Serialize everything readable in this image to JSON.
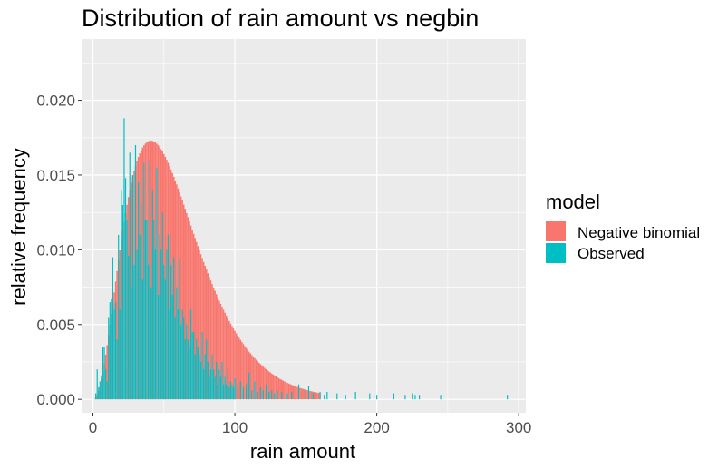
{
  "chart_data": {
    "type": "bar",
    "title": "Distribution of rain amount vs negbin",
    "xlabel": "rain amount",
    "ylabel": "relative frequency",
    "xlim": [
      -8,
      305
    ],
    "ylim": [
      -0.0009,
      0.0241
    ],
    "x_ticks": [
      0,
      100,
      200,
      300
    ],
    "y_ticks": [
      "0.000",
      "0.005",
      "0.010",
      "0.015",
      "0.020"
    ],
    "grid": true,
    "legend": {
      "title": "model",
      "placement": "right",
      "entries": [
        "Negative binomial",
        "Observed"
      ]
    },
    "colors": {
      "Negative binomial": "#F8766D",
      "Observed": "#00BFC4",
      "panel": "#EBEBEB",
      "grid": "#FFFFFF"
    },
    "negbin": {
      "name": "Negative binomial",
      "shape": 3.4,
      "scale": 17.0,
      "peak": 0.0173,
      "x_range": [
        0,
        160
      ]
    },
    "series": [
      {
        "name": "Observed",
        "x": [
          2,
          3,
          4,
          5,
          6,
          7,
          8,
          9,
          10,
          11,
          12,
          13,
          14,
          15,
          16,
          17,
          18,
          19,
          20,
          21,
          22,
          23,
          24,
          25,
          26,
          27,
          28,
          29,
          30,
          31,
          32,
          33,
          34,
          35,
          36,
          37,
          38,
          39,
          40,
          41,
          42,
          43,
          44,
          45,
          46,
          47,
          48,
          49,
          50,
          51,
          52,
          53,
          54,
          55,
          56,
          57,
          58,
          59,
          60,
          61,
          62,
          63,
          64,
          65,
          66,
          67,
          68,
          69,
          70,
          71,
          72,
          73,
          74,
          75,
          76,
          77,
          78,
          79,
          80,
          81,
          82,
          83,
          84,
          85,
          86,
          87,
          88,
          89,
          90,
          91,
          92,
          93,
          94,
          95,
          96,
          97,
          98,
          99,
          100,
          102,
          104,
          106,
          108,
          110,
          112,
          114,
          116,
          118,
          120,
          122,
          124,
          126,
          128,
          130,
          133,
          137,
          140,
          145,
          150,
          152,
          155,
          160,
          163,
          165,
          172,
          178,
          185,
          195,
          200,
          212,
          220,
          225,
          227,
          230,
          245,
          292
        ],
        "values": [
          0.0004,
          0.002,
          0.0008,
          0.0012,
          0.0016,
          0.0035,
          0.0035,
          0.002,
          0.0012,
          0.0055,
          0.0065,
          0.0067,
          0.0095,
          0.006,
          0.0065,
          0.004,
          0.011,
          0.006,
          0.014,
          0.013,
          0.0188,
          0.0148,
          0.012,
          0.0096,
          0.0165,
          0.0075,
          0.015,
          0.009,
          0.017,
          0.01,
          0.0145,
          0.011,
          0.013,
          0.008,
          0.0158,
          0.012,
          0.012,
          0.009,
          0.016,
          0.0075,
          0.014,
          0.012,
          0.01,
          0.0155,
          0.007,
          0.011,
          0.01,
          0.0125,
          0.009,
          0.008,
          0.01,
          0.011,
          0.006,
          0.009,
          0.007,
          0.0095,
          0.0055,
          0.0075,
          0.006,
          0.0094,
          0.005,
          0.006,
          0.0055,
          0.004,
          0.005,
          0.004,
          0.0035,
          0.006,
          0.0045,
          0.0045,
          0.003,
          0.004,
          0.0035,
          0.003,
          0.0025,
          0.0045,
          0.002,
          0.003,
          0.004,
          0.0025,
          0.0015,
          0.002,
          0.003,
          0.002,
          0.0015,
          0.0025,
          0.001,
          0.002,
          0.0015,
          0.0025,
          0.001,
          0.0015,
          0.001,
          0.002,
          0.0008,
          0.0012,
          0.001,
          0.0008,
          0.0014,
          0.001,
          0.0012,
          0.0008,
          0.001,
          0.0018,
          0.0006,
          0.0012,
          0.0005,
          0.0008,
          0.0006,
          0.001,
          0.0005,
          0.0006,
          0.0004,
          0.0006,
          0.0005,
          0.0004,
          0.0005,
          0.001,
          0.0006,
          0.0009,
          0.0004,
          0.0005,
          0.0003,
          0.0005,
          0.0004,
          0.0003,
          0.0005,
          0.0004,
          0.0003,
          0.0004,
          0.0003,
          0.0004,
          0.0003,
          0.0003,
          0.0003,
          0.0003
        ]
      }
    ]
  }
}
